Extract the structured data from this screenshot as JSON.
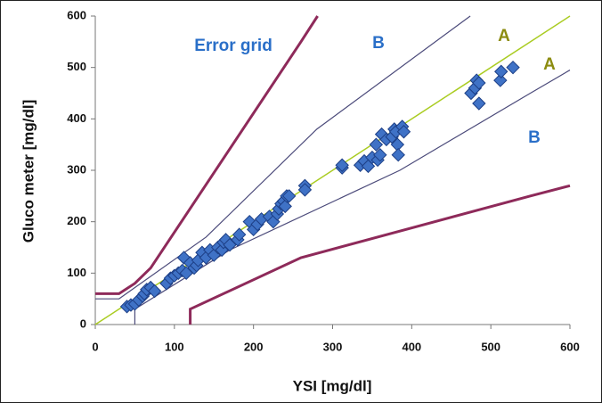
{
  "chart_data": {
    "type": "scatter",
    "xlabel": "YSI [mg/dl]",
    "ylabel": "Gluco meter [mg/dl]",
    "xlim": [
      0,
      600
    ],
    "ylim": [
      0,
      600
    ],
    "xticks": [
      0,
      100,
      200,
      300,
      400,
      500,
      600
    ],
    "yticks": [
      0,
      100,
      200,
      300,
      400,
      500,
      600
    ],
    "color": "#3f72c6",
    "x": [
      40,
      45,
      50,
      55,
      60,
      62,
      65,
      70,
      75,
      90,
      95,
      100,
      105,
      110,
      112,
      115,
      120,
      125,
      128,
      130,
      135,
      140,
      145,
      150,
      155,
      160,
      162,
      165,
      170,
      180,
      182,
      195,
      200,
      205,
      210,
      220,
      225,
      230,
      232,
      235,
      238,
      240,
      242,
      245,
      265,
      265,
      312,
      312,
      335,
      340,
      345,
      350,
      355,
      357,
      360,
      362,
      368,
      375,
      378,
      380,
      382,
      383,
      388,
      390,
      475,
      480,
      482,
      485,
      485,
      512,
      513,
      528
    ],
    "values": [
      35,
      38,
      40,
      48,
      55,
      60,
      68,
      72,
      65,
      80,
      90,
      95,
      100,
      105,
      130,
      100,
      120,
      110,
      115,
      125,
      140,
      130,
      145,
      135,
      150,
      145,
      160,
      165,
      155,
      165,
      175,
      200,
      185,
      195,
      205,
      210,
      200,
      215,
      225,
      235,
      240,
      230,
      250,
      250,
      270,
      262,
      305,
      310,
      310,
      318,
      308,
      325,
      350,
      320,
      330,
      370,
      360,
      365,
      380,
      375,
      350,
      330,
      385,
      375,
      450,
      460,
      475,
      430,
      470,
      475,
      492,
      500
    ],
    "lines": [
      {
        "color": "#aacc22",
        "x": [
          0,
          600
        ],
        "y": [
          0,
          600
        ]
      },
      {
        "color": "#4b4a7a",
        "x": [
          0,
          30,
          140,
          280,
          474
        ],
        "y": [
          50,
          50,
          170,
          380,
          600
        ]
      },
      {
        "color": "#4b4a7a",
        "x": [
          50,
          50,
          170,
          385,
          550,
          600
        ],
        "y": [
          0,
          30,
          145,
          300,
          450,
          495
        ]
      },
      {
        "color": "#8e2a5a",
        "x": [
          0,
          30,
          50,
          70,
          260,
          281
        ],
        "y": [
          60,
          60,
          80,
          110,
          550,
          600
        ]
      },
      {
        "color": "#8e2a5a",
        "x": [
          120,
          120,
          260,
          550,
          600
        ],
        "y": [
          0,
          30,
          130,
          250,
          270
        ]
      }
    ],
    "annotations": [
      {
        "text": "Error grid",
        "color": "#2a6fc8"
      },
      {
        "text": "B",
        "color": "#2a6fc8"
      },
      {
        "text": "A",
        "color": "#8c8c10"
      },
      {
        "text": "A",
        "color": "#8c8c10"
      },
      {
        "text": "B",
        "color": "#2a6fc8"
      }
    ]
  }
}
